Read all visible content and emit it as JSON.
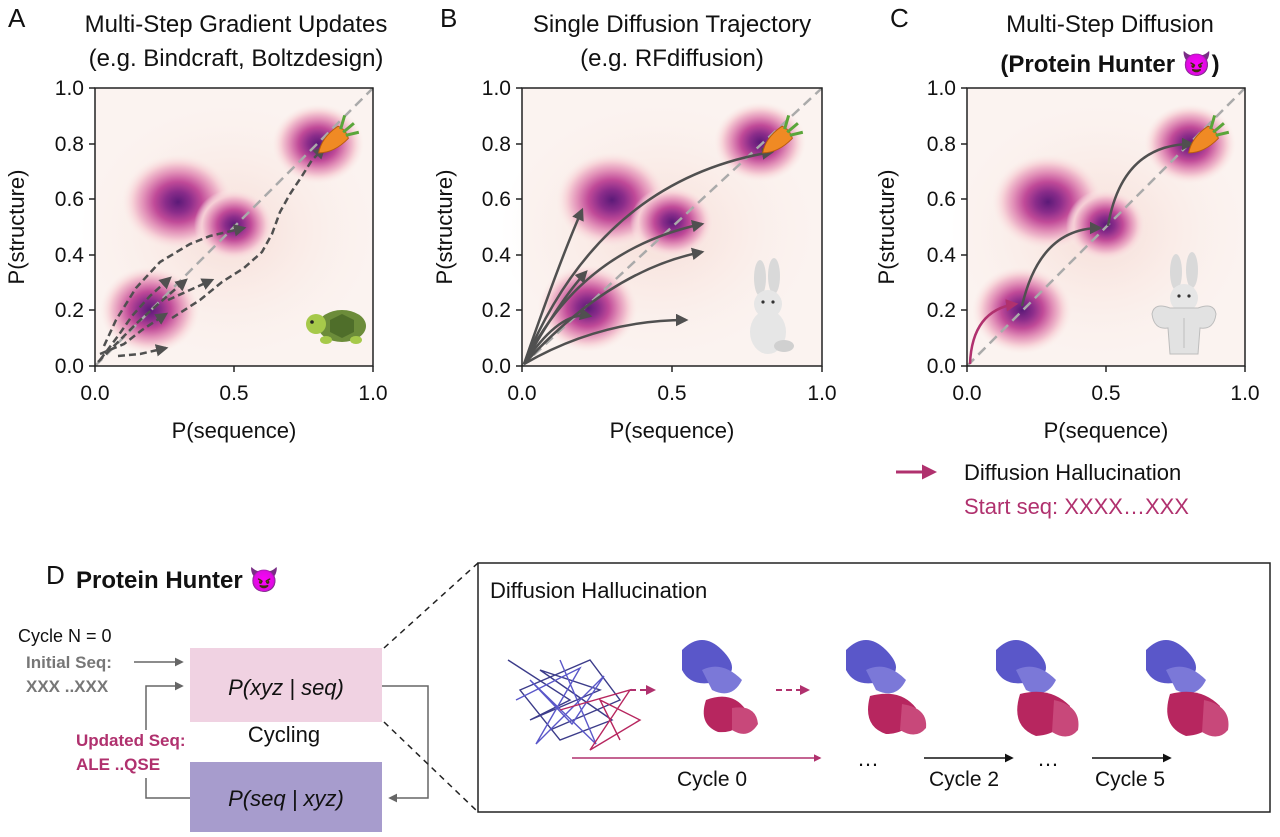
{
  "panels": [
    {
      "letter": "A",
      "title1": "Multi-Step Gradient Updates",
      "title2": "(e.g. Bindcraft, Boltzdesign)"
    },
    {
      "letter": "B",
      "title1": "Single Diffusion Trajectory",
      "title2": "(e.g. RFdiffusion)"
    },
    {
      "letter": "C",
      "title1": "Multi-Step Diffusion",
      "title2": "(Protein Hunter 😈)"
    }
  ],
  "axes": {
    "xlabel": "P(sequence)",
    "ylabel": "P(structure)",
    "xticks": [
      "0.0",
      "0.5",
      "1.0"
    ],
    "yticks": [
      "0.0",
      "0.2",
      "0.4",
      "0.6",
      "0.8",
      "1.0"
    ]
  },
  "legend": {
    "label": "Diffusion Hallucination",
    "start_seq": "Start seq: XXXX…XXX",
    "color": "#b0316e"
  },
  "panel_d": {
    "letter": "D",
    "title": "Protein Hunter 😈",
    "cycle_n": "Cycle N = 0",
    "initial_seq_label": "Initial Seq:",
    "initial_seq": "XXX ..XXX",
    "updated_seq_label": "Updated Seq:",
    "updated_seq": "ALE ..QSE",
    "box_top": "P(xyz | seq)",
    "box_bottom": "P(seq | xyz)",
    "cycling": "Cycling",
    "inset_title": "Diffusion Hallucination",
    "cycle0": "Cycle 0",
    "cycle2": "Cycle 2",
    "cycle5": "Cycle 5",
    "ellipsis": "…"
  },
  "colors": {
    "density_dark": "#6b1f7c",
    "density_light": "#f9e6df",
    "arrow": "#505050",
    "magenta": "#b0316e",
    "box_pink": "#f0d2e2",
    "box_purple": "#a79ccd",
    "protein_blue": "#5a57c9",
    "protein_red": "#b7265f"
  },
  "icons": [
    "carrot-icon",
    "turtle-icon",
    "rabbit-icon",
    "muscle-rabbit-icon",
    "devil-emoji-icon"
  ]
}
